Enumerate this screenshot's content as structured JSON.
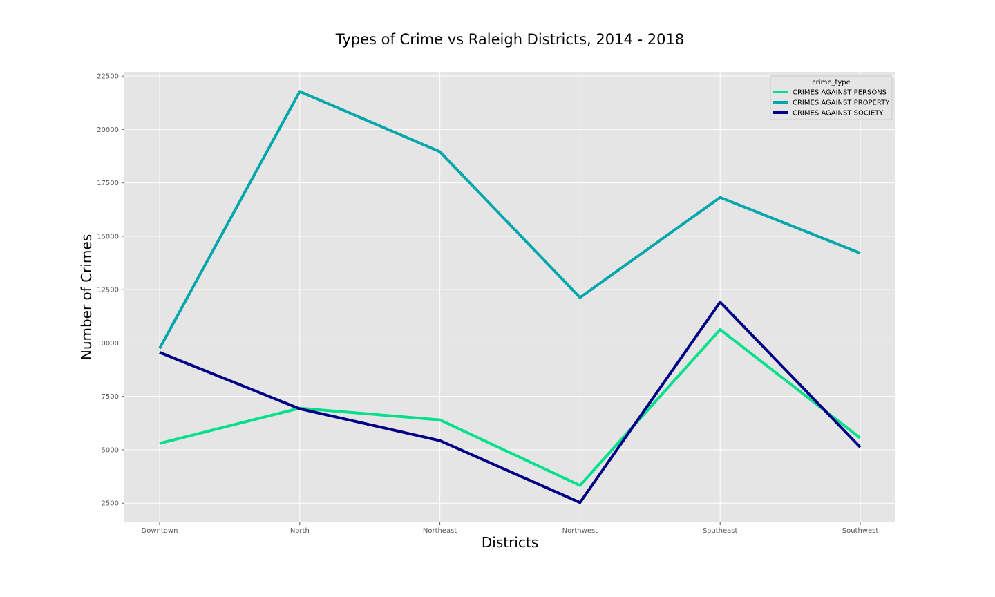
{
  "chart_data": {
    "type": "line",
    "title": "Types of Crime vs Raleigh Districts, 2014 - 2018",
    "xlabel": "Districts",
    "ylabel": "Number of Crimes",
    "categories": [
      "Downtown",
      "North",
      "Northeast",
      "Northwest",
      "Southeast",
      "Southwest"
    ],
    "ylim": [
      1600,
      22700
    ],
    "yticks": [
      2500,
      5000,
      7500,
      10000,
      12500,
      15000,
      17500,
      20000,
      22500
    ],
    "grid": true,
    "legend": {
      "title": "crime_type",
      "placement": "top-right"
    },
    "series": [
      {
        "name": "CRIMES AGAINST PERSONS",
        "color": "#00e08a",
        "values": [
          5300,
          6950,
          6400,
          3330,
          10630,
          5550
        ]
      },
      {
        "name": "CRIMES AGAINST PROPERTY",
        "color": "#00a6aa",
        "values": [
          9750,
          21780,
          18960,
          12130,
          16820,
          14210
        ]
      },
      {
        "name": "CRIMES AGAINST SOCIETY",
        "color": "#000087",
        "values": [
          9560,
          6920,
          5430,
          2530,
          11920,
          5120
        ]
      }
    ]
  }
}
